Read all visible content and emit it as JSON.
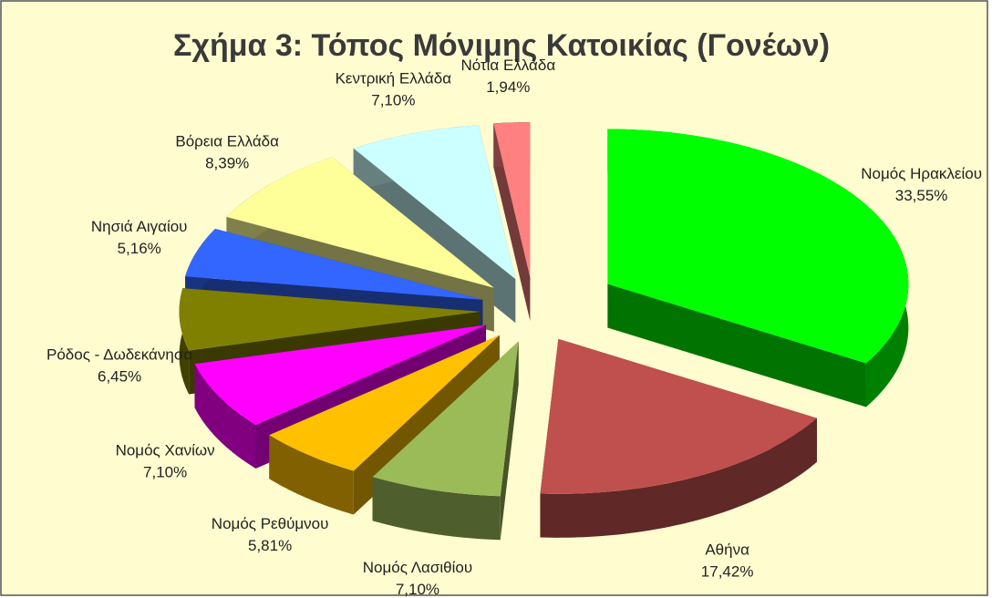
{
  "chart_data": {
    "type": "pie3d",
    "title": "Σχήμα 3: Τόπος Μόνιμης Κατοικίας (Γονέων)",
    "categories": [
      "Νομός Ηρακλείου",
      "Αθήνα",
      "Νομός Λασιθίου",
      "Νομός Ρεθύμνου",
      "Νομός Χανίων",
      "Ρόδος - Δωδεκάνησα",
      "Νησιά Αιγαίου",
      "Βόρεια Ελλάδα",
      "Κεντρική Ελλάδα",
      "Νότια Ελλάδα"
    ],
    "values": [
      33.55,
      17.42,
      7.1,
      5.81,
      7.1,
      6.45,
      5.16,
      8.39,
      7.1,
      1.94
    ],
    "value_labels": [
      "33,55%",
      "17,42%",
      "7,10%",
      "5,81%",
      "7,10%",
      "6,45%",
      "5,16%",
      "8,39%",
      "7,10%",
      "1,94%"
    ],
    "colors": [
      "#00ff00",
      "#c0504d",
      "#9bbb59",
      "#ffc000",
      "#ff00ff",
      "#808000",
      "#3366ff",
      "#ffff99",
      "#ccffff",
      "#ff8080"
    ]
  }
}
